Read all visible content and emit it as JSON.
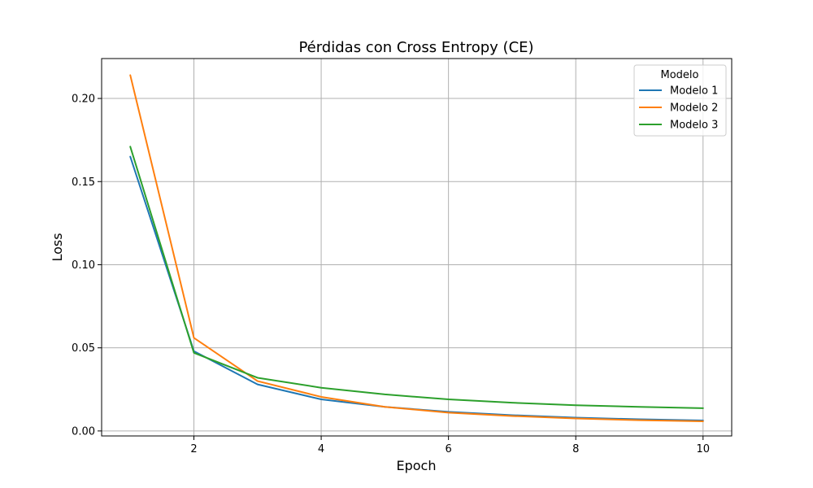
{
  "chart_data": {
    "type": "line",
    "title": "Pérdidas con Cross Entropy (CE)",
    "xlabel": "Epoch",
    "ylabel": "Loss",
    "x": [
      1,
      2,
      3,
      4,
      5,
      6,
      7,
      8,
      9,
      10
    ],
    "xlim": [
      0.55,
      10.45
    ],
    "ylim": [
      -0.003,
      0.224
    ],
    "xticks": [
      2,
      4,
      6,
      8,
      10
    ],
    "xtick_labels": [
      "2",
      "4",
      "6",
      "8",
      "10"
    ],
    "yticks": [
      0.0,
      0.05,
      0.1,
      0.15,
      0.2
    ],
    "ytick_labels": [
      "0.00",
      "0.05",
      "0.10",
      "0.15",
      "0.20"
    ],
    "grid": true,
    "legend": {
      "title": "Modelo",
      "placement": "top-right"
    },
    "series": [
      {
        "name": "Modelo 1",
        "color": "#1f77b4",
        "values": [
          0.165,
          0.048,
          0.028,
          0.019,
          0.0145,
          0.0115,
          0.0095,
          0.008,
          0.007,
          0.0063
        ]
      },
      {
        "name": "Modelo 2",
        "color": "#ff7f0e",
        "values": [
          0.214,
          0.056,
          0.03,
          0.0205,
          0.0145,
          0.011,
          0.009,
          0.0075,
          0.0065,
          0.0058
        ]
      },
      {
        "name": "Modelo 3",
        "color": "#2ca02c",
        "values": [
          0.171,
          0.047,
          0.032,
          0.026,
          0.022,
          0.019,
          0.017,
          0.0155,
          0.0145,
          0.0137
        ]
      }
    ]
  }
}
